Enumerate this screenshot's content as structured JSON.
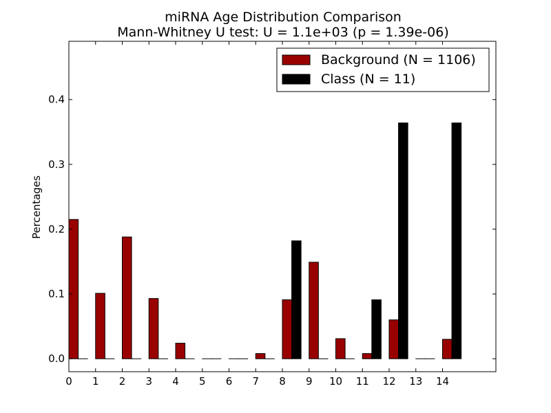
{
  "chart_data": {
    "type": "bar",
    "title": "miRNA Age Distribution Comparison",
    "subtitle": "Mann-Whitney U test: U = 1.1e+03 (p = 1.39e-06)",
    "xlabel": "",
    "ylabel": "Percentages",
    "categories": [
      "0",
      "1",
      "2",
      "3",
      "4",
      "5",
      "6",
      "7",
      "8",
      "9",
      "10",
      "11",
      "12",
      "13",
      "14"
    ],
    "x_tick_labels": [
      "0",
      "1",
      "2",
      "3",
      "4",
      "5",
      "6",
      "7",
      "8",
      "9",
      "10",
      "11",
      "12",
      "13",
      "14"
    ],
    "y_tick_labels": [
      "0.0",
      "0.1",
      "0.2",
      "0.3",
      "0.4"
    ],
    "y_ticks": [
      0.0,
      0.1,
      0.2,
      0.3,
      0.4
    ],
    "xlim": [
      0,
      16
    ],
    "ylim": [
      -0.02,
      0.49
    ],
    "grid": false,
    "legend_position": "top-right",
    "series": [
      {
        "name": "Background (N = 1106)",
        "color": "#990000",
        "values": [
          0.215,
          0.101,
          0.188,
          0.093,
          0.024,
          0.0,
          0.0,
          0.008,
          0.091,
          0.149,
          0.031,
          0.008,
          0.06,
          0.0,
          0.03
        ]
      },
      {
        "name": "Class (N = 11)",
        "color": "#000000",
        "values": [
          0.0,
          0.0,
          0.0,
          0.0,
          0.0,
          0.0,
          0.0,
          0.0,
          0.182,
          0.0,
          0.0,
          0.091,
          0.364,
          0.0,
          0.364
        ]
      }
    ]
  }
}
